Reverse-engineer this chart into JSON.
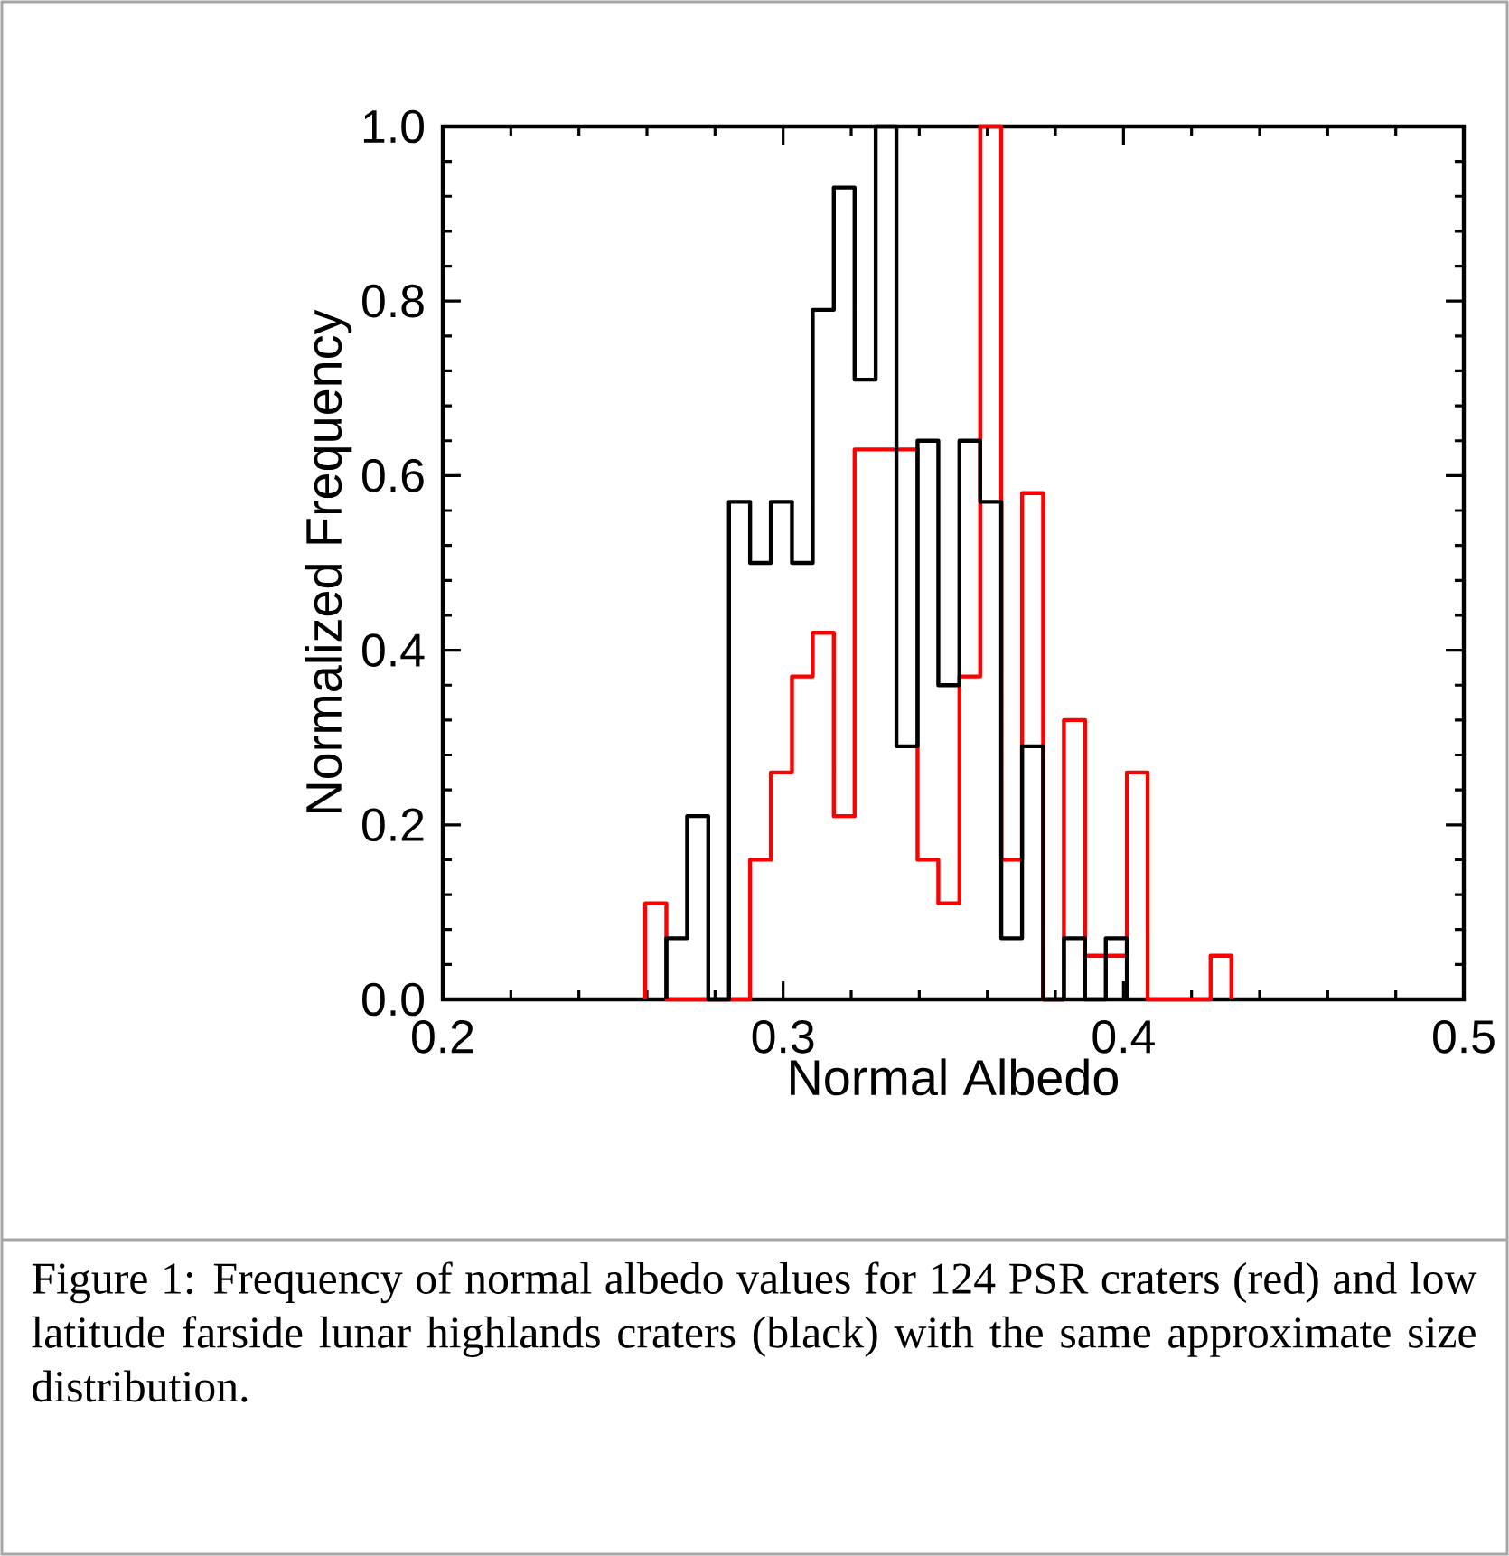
{
  "chart_data": {
    "type": "histogram",
    "xlabel": "Normal Albedo",
    "ylabel": "Normalized Frequency",
    "bins": [
      0.2595,
      0.2657,
      0.2718,
      0.278,
      0.2841,
      0.2903,
      0.2964,
      0.3026,
      0.3087,
      0.3149,
      0.321,
      0.3272,
      0.3333,
      0.3395,
      0.3456,
      0.3518,
      0.3579,
      0.3641,
      0.3702,
      0.3764,
      0.3825,
      0.3887,
      0.3948,
      0.401,
      0.4071,
      0.4133,
      0.4194,
      0.4256,
      0.4317
    ],
    "series": [
      {
        "color": "#ff0000",
        "values": [
          0.11,
          0,
          0,
          0,
          0,
          0.16,
          0.26,
          0.37,
          0.42,
          0.21,
          0.63,
          0.63,
          0.63,
          0.16,
          0.11,
          0.37,
          1.0,
          0.16,
          0.58,
          0,
          0.32,
          0.05,
          0.05,
          0.26,
          0,
          0,
          0,
          0.05
        ]
      },
      {
        "color": "#000000",
        "bins": [
          0.2657,
          0.2718,
          0.278,
          0.2841,
          0.2903,
          0.2964,
          0.3026,
          0.3087,
          0.3149,
          0.321,
          0.3272,
          0.3333,
          0.3395,
          0.3456,
          0.3518,
          0.3579,
          0.3641,
          0.3702,
          0.3764,
          0.3825,
          0.3887,
          0.3948,
          0.401
        ],
        "values": [
          0.07,
          0.21,
          0,
          0.57,
          0.5,
          0.57,
          0.5,
          0.79,
          0.93,
          0.71,
          1.0,
          0.29,
          0.64,
          0.36,
          0.64,
          0.57,
          0.07,
          0.29,
          0,
          0.07,
          0,
          0.07
        ]
      }
    ],
    "xlim": [
      0.2,
      0.5
    ],
    "ylim": [
      0,
      1.0
    ],
    "xticks": [
      0.2,
      0.3,
      0.4,
      0.5
    ],
    "yticks": [
      {
        "value": 0,
        "label": "0.0"
      },
      {
        "value": 0.2,
        "label": "0.2"
      },
      {
        "value": 0.4,
        "label": "0.4"
      },
      {
        "value": 0.6,
        "label": "0.6"
      },
      {
        "value": 0.8,
        "label": "0.8"
      },
      {
        "value": 1.0,
        "label": "1.0"
      }
    ],
    "grid": false,
    "annotations": [
      "Figure 1: Frequency of normal albedo values for 124 PSR craters (red) and low latitude farside lunar highlands craters (black) with the same approximate size distribution."
    ]
  }
}
